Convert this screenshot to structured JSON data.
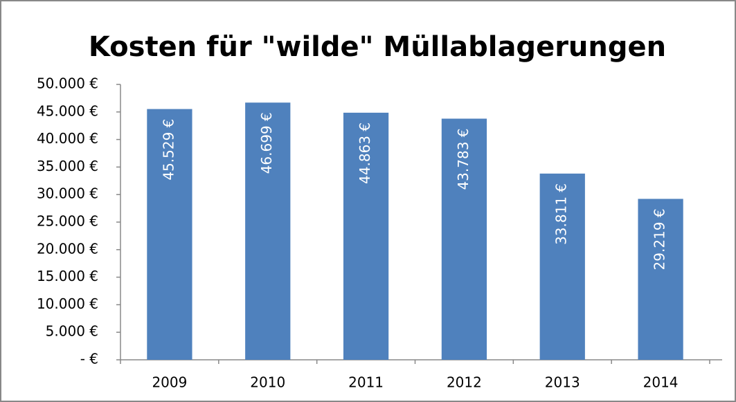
{
  "chart_data": {
    "type": "bar",
    "title": "Kosten für \"wilde\" Müllablagerungen",
    "categories": [
      "2009",
      "2010",
      "2011",
      "2012",
      "2013",
      "2014"
    ],
    "values": [
      45529,
      46699,
      44863,
      43783,
      33811,
      29219
    ],
    "value_labels": [
      "45.529 €",
      "46.699 €",
      "44.863 €",
      "43.783 €",
      "33.811 €",
      "29.219 €"
    ],
    "color": "#4f81bd",
    "ylim": [
      0,
      50000
    ],
    "yticks": [
      {
        "value": 0,
        "label": "-   €"
      },
      {
        "value": 5000,
        "label": "5.000 €"
      },
      {
        "value": 10000,
        "label": "10.000 €"
      },
      {
        "value": 15000,
        "label": "15.000 €"
      },
      {
        "value": 20000,
        "label": "20.000 €"
      },
      {
        "value": 25000,
        "label": "25.000 €"
      },
      {
        "value": 30000,
        "label": "30.000 €"
      },
      {
        "value": 35000,
        "label": "35.000 €"
      },
      {
        "value": 40000,
        "label": "40.000 €"
      },
      {
        "value": 45000,
        "label": "45.000 €"
      },
      {
        "value": 50000,
        "label": "50.000 €"
      }
    ],
    "grid": false
  }
}
